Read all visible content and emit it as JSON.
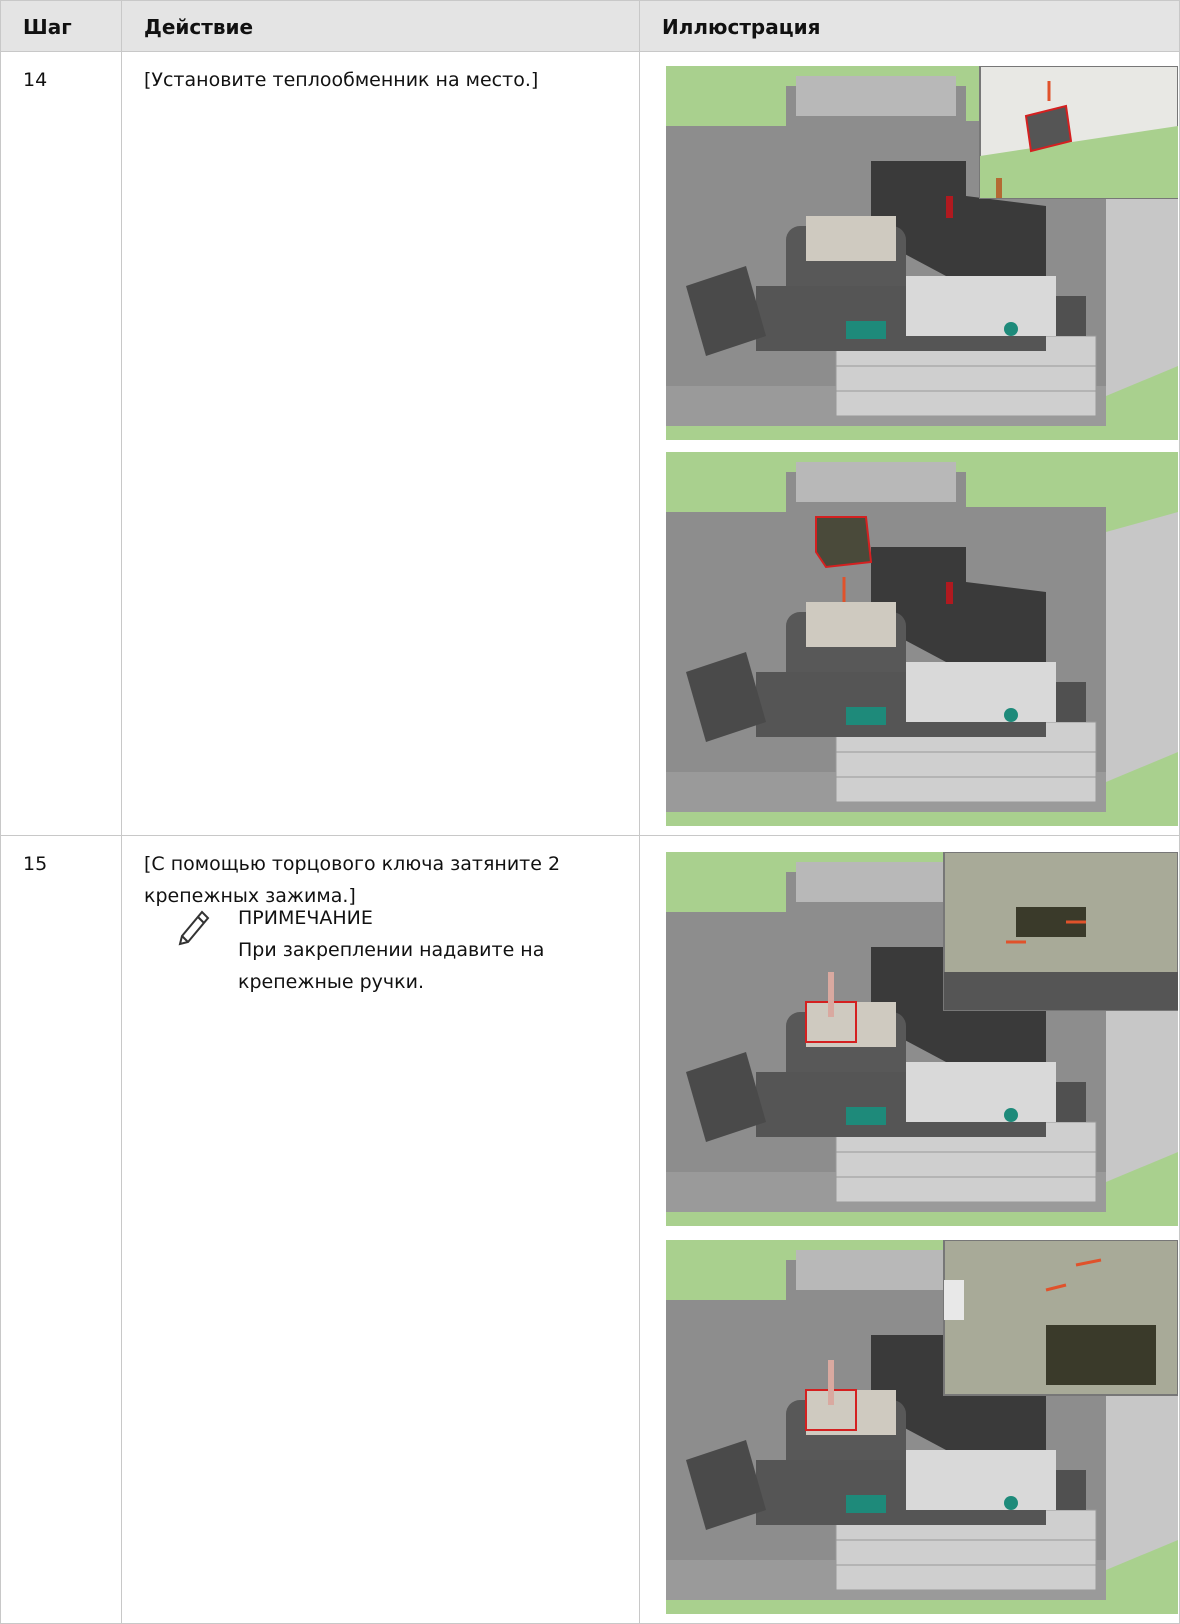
{
  "table": {
    "headers": [
      "Шаг",
      "Действие",
      "Иллюстрация"
    ],
    "rows": [
      {
        "step": "14",
        "action": "[Установите теплообменник на место.]"
      },
      {
        "step": "15",
        "action": "[С помощью торцового ключа затяните 2 крепежных зажима.]",
        "note": {
          "title": "ПРИМЕЧАНИЕ",
          "text": "При закреплении надавите на крепежные ручки."
        }
      }
    ]
  }
}
